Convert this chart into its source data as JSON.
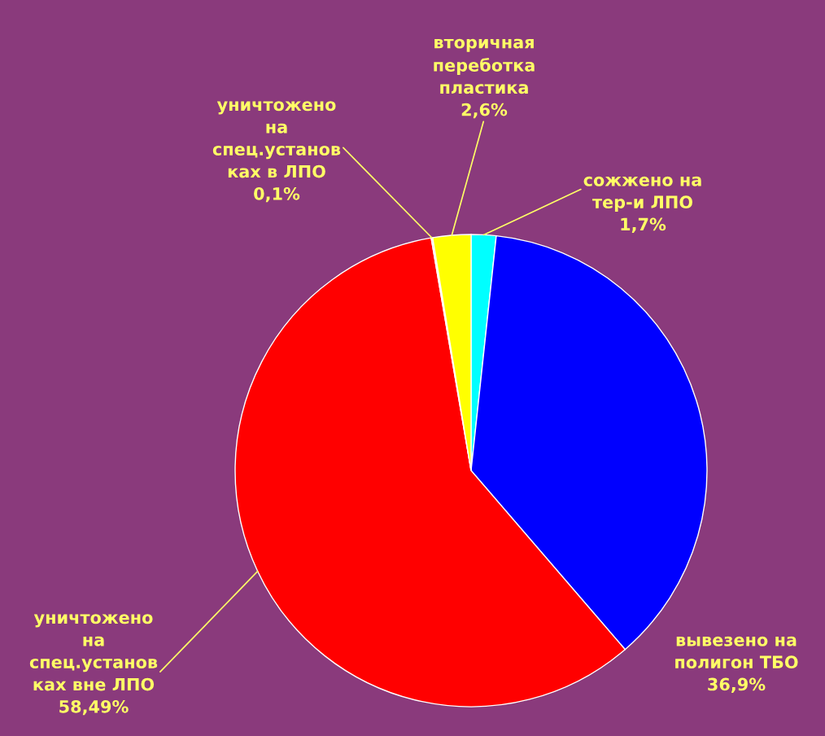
{
  "chart_data": {
    "type": "pie",
    "categories": [
      "сожжено на\nтер-и ЛПО",
      "вывезено на\nполигон ТБО",
      "уничтожено\nна\nспец.установ\nках вне ЛПО",
      "уничтожено\nна\nспец.установ\nках в ЛПО",
      "вторичная\nпереботка\nпластика"
    ],
    "values": [
      1.7,
      36.9,
      58.49,
      0.1,
      2.6
    ],
    "value_labels": [
      "1,7%",
      "36,9%",
      "58,49%",
      "0,1%",
      "2,6%"
    ],
    "colors": [
      "#00ffff",
      "#0000ff",
      "#ff0000",
      "#d8b0d8",
      "#ffff00"
    ]
  }
}
